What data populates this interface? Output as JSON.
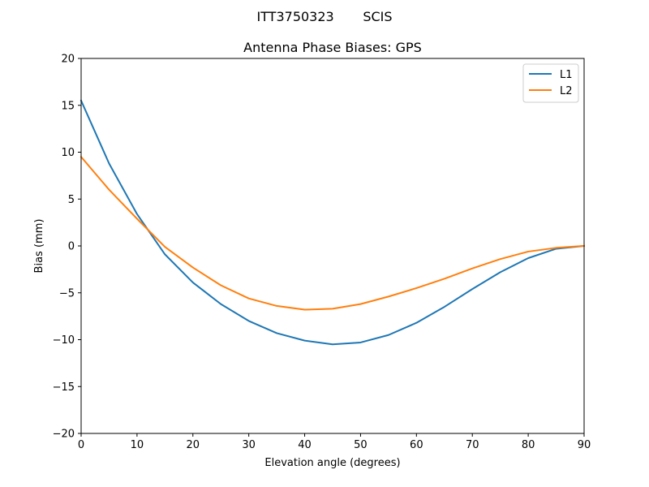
{
  "figure": {
    "suptitle": "ITT3750323       SCIS"
  },
  "chart_data": {
    "type": "line",
    "title": "Antenna Phase Biases: GPS",
    "xlabel": "Elevation angle (degrees)",
    "ylabel": "Bias (mm)",
    "xlim": [
      0,
      90
    ],
    "ylim": [
      -20,
      20
    ],
    "xticks": [
      0,
      10,
      20,
      30,
      40,
      50,
      60,
      70,
      80,
      90
    ],
    "yticks": [
      -20,
      -15,
      -10,
      -5,
      0,
      5,
      10,
      15,
      20
    ],
    "xtick_labels": [
      "0",
      "10",
      "20",
      "30",
      "40",
      "50",
      "60",
      "70",
      "80",
      "90"
    ],
    "ytick_labels": [
      "−20",
      "−15",
      "−10",
      "−5",
      "0",
      "5",
      "10",
      "15",
      "20"
    ],
    "grid": false,
    "legend_position": "top-right",
    "x": [
      0,
      5,
      10,
      15,
      20,
      25,
      30,
      35,
      40,
      45,
      50,
      55,
      60,
      65,
      70,
      75,
      80,
      85,
      90
    ],
    "series": [
      {
        "name": "L1",
        "color": "#1f77b4",
        "values": [
          15.5,
          8.8,
          3.4,
          -0.9,
          -3.9,
          -6.2,
          -8.0,
          -9.3,
          -10.1,
          -10.5,
          -10.3,
          -9.5,
          -8.2,
          -6.5,
          -4.6,
          -2.8,
          -1.3,
          -0.3,
          0.0
        ]
      },
      {
        "name": "L2",
        "color": "#ff7f0e",
        "values": [
          9.5,
          6.0,
          2.9,
          -0.1,
          -2.3,
          -4.2,
          -5.6,
          -6.4,
          -6.8,
          -6.7,
          -6.2,
          -5.4,
          -4.5,
          -3.5,
          -2.4,
          -1.4,
          -0.6,
          -0.2,
          0.0
        ]
      }
    ]
  }
}
